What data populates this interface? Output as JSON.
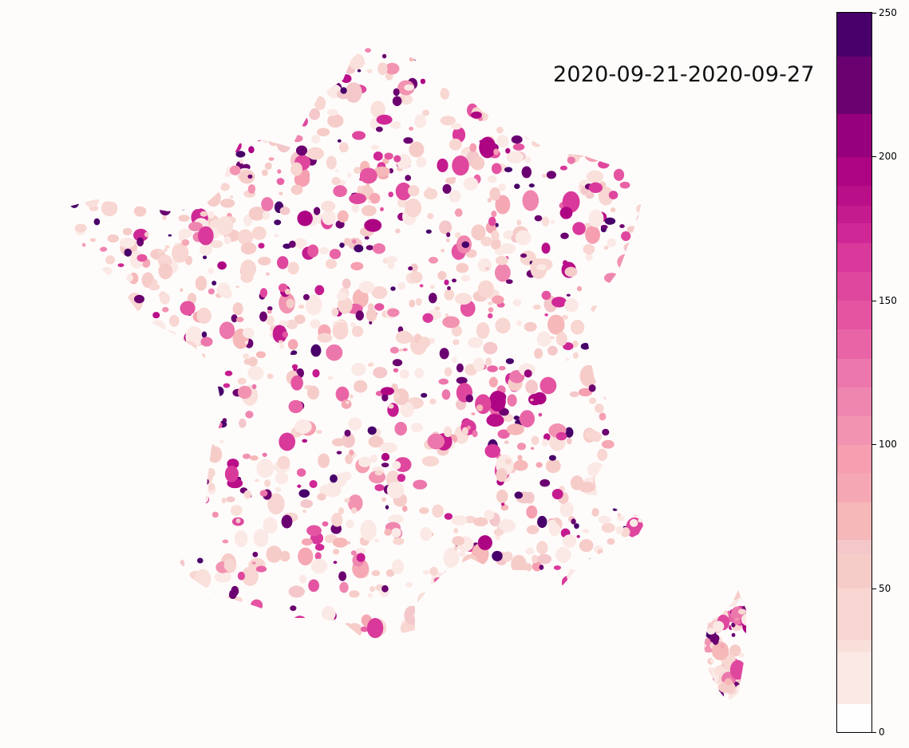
{
  "title": "2020-09-21-2020-09-27",
  "colorbar": {
    "min": 0,
    "max": 250,
    "ticks": [
      0,
      50,
      100,
      150,
      200,
      250
    ],
    "tick_labels": [
      "0",
      "50",
      "100",
      "150",
      "200",
      "250"
    ],
    "bins": [
      {
        "from": 0,
        "to": 10,
        "color": "#fefefe"
      },
      {
        "from": 10,
        "to": 28,
        "color": "#fbe9e6"
      },
      {
        "from": 28,
        "to": 32,
        "color": "#f9e0db"
      },
      {
        "from": 32,
        "to": 50,
        "color": "#f8d6d1"
      },
      {
        "from": 50,
        "to": 62,
        "color": "#f6ccc9"
      },
      {
        "from": 62,
        "to": 67,
        "color": "#f4c8cb"
      },
      {
        "from": 67,
        "to": 80,
        "color": "#f6b8b8"
      },
      {
        "from": 80,
        "to": 90,
        "color": "#f5a8b3"
      },
      {
        "from": 90,
        "to": 100,
        "color": "#f59fb1"
      },
      {
        "from": 100,
        "to": 110,
        "color": "#f293b1"
      },
      {
        "from": 110,
        "to": 120,
        "color": "#ef86b0"
      },
      {
        "from": 120,
        "to": 130,
        "color": "#ec77ac"
      },
      {
        "from": 130,
        "to": 140,
        "color": "#e964a6"
      },
      {
        "from": 140,
        "to": 150,
        "color": "#e454a1"
      },
      {
        "from": 150,
        "to": 160,
        "color": "#df479e"
      },
      {
        "from": 160,
        "to": 170,
        "color": "#d9399b"
      },
      {
        "from": 170,
        "to": 177,
        "color": "#cf2896"
      },
      {
        "from": 177,
        "to": 183,
        "color": "#c41b8f"
      },
      {
        "from": 183,
        "to": 190,
        "color": "#b90f89"
      },
      {
        "from": 190,
        "to": 200,
        "color": "#ad0483"
      },
      {
        "from": 200,
        "to": 215,
        "color": "#96007c"
      },
      {
        "from": 215,
        "to": 235,
        "color": "#6b0070"
      },
      {
        "from": 235,
        "to": 250,
        "color": "#48006a"
      }
    ]
  },
  "colors": {
    "background": "#fefcfb",
    "low": "#f8d6d1",
    "mid": "#e454a1",
    "high": "#520a68"
  },
  "regions": [
    {
      "name": "mainland-france",
      "shape": "mainland"
    },
    {
      "name": "corsica",
      "shape": "corsica"
    }
  ]
}
